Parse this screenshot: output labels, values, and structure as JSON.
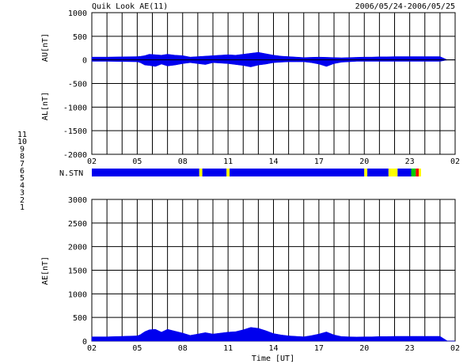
{
  "header": {
    "title": "Quik Look AE(11)",
    "date_range": "2006/05/24-2006/05/25"
  },
  "colors": {
    "fill": "#0000ee",
    "station_main": "#0000ee",
    "station_yellow": "#ffff00",
    "station_green": "#00cc00",
    "station_red": "#ee0000"
  },
  "legend": [
    {
      "label": "11",
      "color": "#00cccc"
    },
    {
      "label": "10",
      "color": "#ff00ff"
    },
    {
      "label": "9",
      "color": "#0000ff"
    },
    {
      "label": "8",
      "color": "#ffff00"
    },
    {
      "label": "7",
      "color": "#00cc00"
    },
    {
      "label": "6",
      "color": "#ee0000"
    },
    {
      "label": "5",
      "color": "#dddddd"
    },
    {
      "label": "4",
      "color": "#888888"
    },
    {
      "label": "3",
      "color": "#00aaaa"
    },
    {
      "label": "2",
      "color": "#aa00aa"
    },
    {
      "label": "1",
      "color": "#0000aa"
    }
  ],
  "chart_data": [
    {
      "type": "area",
      "title": "",
      "xlabel": "",
      "ylabel_top": "AU[nT]",
      "ylabel_bottom": "AL[nT]",
      "xlim": [
        0,
        24
      ],
      "ylim": [
        -2000,
        1000
      ],
      "yticks": [
        "1000",
        "500",
        "0",
        "-500",
        "-1000",
        "-1500",
        "-2000"
      ],
      "xticks": [
        "02",
        "05",
        "08",
        "11",
        "14",
        "17",
        "20",
        "23",
        "02"
      ],
      "grid": true,
      "series": [
        {
          "key": "AU",
          "x": [
            0,
            1,
            2,
            3,
            3.2,
            3.5,
            3.8,
            4.2,
            4.6,
            5,
            5.5,
            6,
            6.5,
            7,
            7.5,
            8,
            8.5,
            9,
            9.5,
            10,
            10.5,
            11,
            11.5,
            12,
            12.5,
            13,
            13.5,
            14,
            14.5,
            15,
            15.5,
            16,
            16.5,
            17,
            17.5,
            18,
            18.5,
            19,
            19.5,
            20,
            20.5,
            21,
            21.5,
            22,
            22.5,
            23,
            23.5,
            24
          ],
          "values": [
            60,
            60,
            65,
            70,
            75,
            90,
            120,
            110,
            100,
            120,
            100,
            90,
            60,
            70,
            80,
            90,
            100,
            110,
            100,
            120,
            140,
            160,
            130,
            100,
            80,
            70,
            60,
            50,
            55,
            60,
            55,
            50,
            45,
            50,
            55,
            60,
            60,
            65,
            65,
            70,
            70,
            70,
            70,
            70,
            70,
            70,
            0,
            0
          ]
        },
        {
          "key": "AL",
          "x": [
            0,
            1,
            2,
            3,
            3.2,
            3.5,
            3.8,
            4.2,
            4.6,
            5,
            5.5,
            6,
            6.5,
            7,
            7.5,
            8,
            8.5,
            9,
            9.5,
            10,
            10.5,
            11,
            11.5,
            12,
            12.5,
            13,
            13.5,
            14,
            14.5,
            15,
            15.5,
            16,
            16.5,
            17,
            17.5,
            18,
            18.5,
            19,
            19.5,
            20,
            20.5,
            21,
            21.5,
            22,
            22.5,
            23,
            23.5,
            24
          ],
          "values": [
            -30,
            -30,
            -35,
            -40,
            -60,
            -110,
            -120,
            -140,
            -90,
            -130,
            -110,
            -80,
            -60,
            -80,
            -100,
            -60,
            -70,
            -80,
            -100,
            -120,
            -150,
            -110,
            -90,
            -60,
            -50,
            -40,
            -40,
            -40,
            -60,
            -90,
            -140,
            -80,
            -50,
            -40,
            -30,
            -30,
            -30,
            -30,
            -30,
            -30,
            -30,
            -30,
            -30,
            -30,
            -30,
            -30,
            0,
            0
          ]
        }
      ]
    },
    {
      "type": "bar",
      "ylabel": "N.STN",
      "xlim": [
        0,
        24
      ],
      "segments": [
        {
          "x0": 0,
          "x1": 7.1,
          "color": "station_main"
        },
        {
          "x0": 7.1,
          "x1": 7.3,
          "color": "station_yellow"
        },
        {
          "x0": 7.3,
          "x1": 8.9,
          "color": "station_main"
        },
        {
          "x0": 8.9,
          "x1": 9.1,
          "color": "station_yellow"
        },
        {
          "x0": 9.1,
          "x1": 18.0,
          "color": "station_main"
        },
        {
          "x0": 18.0,
          "x1": 18.2,
          "color": "station_yellow"
        },
        {
          "x0": 18.2,
          "x1": 19.6,
          "color": "station_main"
        },
        {
          "x0": 19.6,
          "x1": 20.2,
          "color": "station_yellow"
        },
        {
          "x0": 20.2,
          "x1": 21.1,
          "color": "station_main"
        },
        {
          "x0": 21.1,
          "x1": 21.4,
          "color": "station_green"
        },
        {
          "x0": 21.4,
          "x1": 21.6,
          "color": "station_red"
        },
        {
          "x0": 21.6,
          "x1": 21.75,
          "color": "station_yellow"
        }
      ]
    },
    {
      "type": "area",
      "title": "",
      "xlabel": "Time [UT]",
      "ylabel": "AE[nT]",
      "xlim": [
        0,
        24
      ],
      "ylim": [
        0,
        3000
      ],
      "yticks": [
        "3000",
        "2500",
        "2000",
        "1500",
        "1000",
        "500",
        "0"
      ],
      "xticks": [
        "02",
        "05",
        "08",
        "11",
        "14",
        "17",
        "20",
        "23",
        "02"
      ],
      "grid": true,
      "series": [
        {
          "key": "AE",
          "x": [
            0,
            1,
            2,
            3,
            3.2,
            3.5,
            3.8,
            4.2,
            4.6,
            5,
            5.5,
            6,
            6.5,
            7,
            7.5,
            8,
            8.5,
            9,
            9.5,
            10,
            10.5,
            11,
            11.5,
            12,
            12.5,
            13,
            13.5,
            14,
            14.5,
            15,
            15.5,
            16,
            16.5,
            17,
            17.5,
            18,
            18.5,
            19,
            19.5,
            20,
            20.5,
            21,
            21.5,
            22,
            22.5,
            23,
            23.5,
            24
          ],
          "values": [
            90,
            90,
            100,
            110,
            135,
            200,
            240,
            250,
            190,
            250,
            210,
            170,
            120,
            150,
            180,
            150,
            170,
            190,
            200,
            240,
            290,
            270,
            220,
            160,
            130,
            110,
            100,
            90,
            115,
            150,
            195,
            130,
            95,
            90,
            85,
            90,
            90,
            95,
            95,
            100,
            100,
            100,
            100,
            100,
            100,
            100,
            0,
            0
          ]
        }
      ]
    }
  ]
}
